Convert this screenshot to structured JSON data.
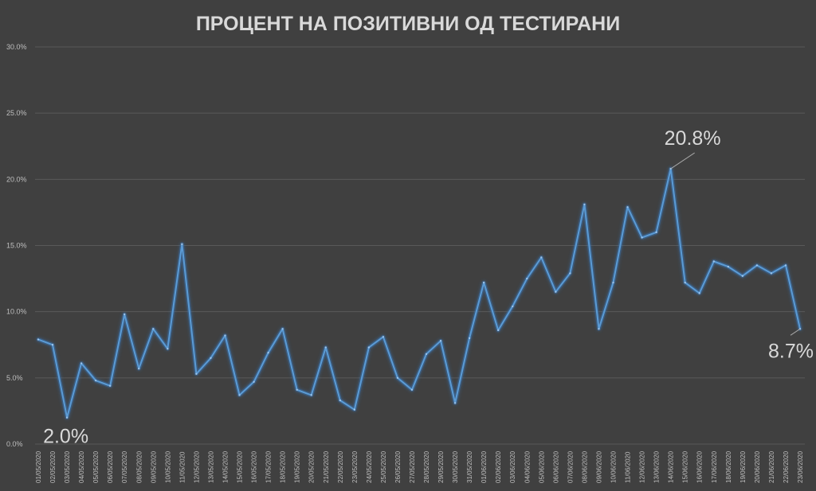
{
  "chart_data": {
    "type": "line",
    "title": "ПРОЦЕНТ НА ПОЗИТИВНИ ОД ТЕСТИРАНИ",
    "xlabel": "",
    "ylabel": "",
    "ylim": [
      0,
      30
    ],
    "y_ticks": [
      "0.0%",
      "5.0%",
      "10.0%",
      "15.0%",
      "20.0%",
      "25.0%",
      "30.0%"
    ],
    "grid": true,
    "legend": "none",
    "line_color": "#5b9bd5",
    "categories": [
      "01/05/2020",
      "02/05/2020",
      "03/05/2020",
      "04/05/2020",
      "05/05/2020",
      "06/05/2020",
      "07/05/2020",
      "08/05/2020",
      "09/05/2020",
      "10/05/2020",
      "11/05/2020",
      "12/05/2020",
      "13/05/2020",
      "14/05/2020",
      "15/05/2020",
      "16/05/2020",
      "17/05/2020",
      "18/05/2020",
      "19/05/2020",
      "20/05/2020",
      "21/05/2020",
      "22/05/2020",
      "23/05/2020",
      "24/05/2020",
      "25/05/2020",
      "26/05/2020",
      "27/05/2020",
      "28/05/2020",
      "29/05/2020",
      "30/05/2020",
      "31/05/2020",
      "01/06/2020",
      "02/06/2020",
      "03/06/2020",
      "04/06/2020",
      "05/06/2020",
      "06/06/2020",
      "07/06/2020",
      "08/06/2020",
      "09/06/2020",
      "10/06/2020",
      "11/06/2020",
      "12/06/2020",
      "13/06/2020",
      "14/06/2020",
      "15/06/2020",
      "16/06/2020",
      "17/06/2020",
      "18/06/2020",
      "19/06/2020",
      "20/06/2020",
      "21/06/2020",
      "22/06/2020",
      "23/06/2020"
    ],
    "values": [
      7.9,
      7.5,
      2.0,
      6.1,
      4.8,
      4.4,
      9.8,
      5.7,
      8.7,
      7.2,
      15.1,
      5.3,
      6.5,
      8.2,
      3.7,
      4.7,
      6.9,
      8.7,
      4.1,
      3.7,
      7.3,
      3.3,
      2.6,
      7.3,
      8.1,
      5.0,
      4.1,
      6.8,
      7.8,
      3.1,
      8.0,
      12.2,
      8.6,
      10.4,
      12.5,
      14.1,
      11.5,
      12.9,
      18.1,
      8.7,
      12.2,
      17.9,
      15.6,
      16.0,
      20.8,
      12.2,
      11.4,
      13.8,
      13.4,
      12.7,
      13.5,
      12.9,
      13.5,
      8.7
    ],
    "annotations": [
      {
        "index": 2,
        "text": "2.0%"
      },
      {
        "index": 44,
        "text": "20.8%"
      },
      {
        "index": 53,
        "text": "8.7%"
      }
    ]
  }
}
